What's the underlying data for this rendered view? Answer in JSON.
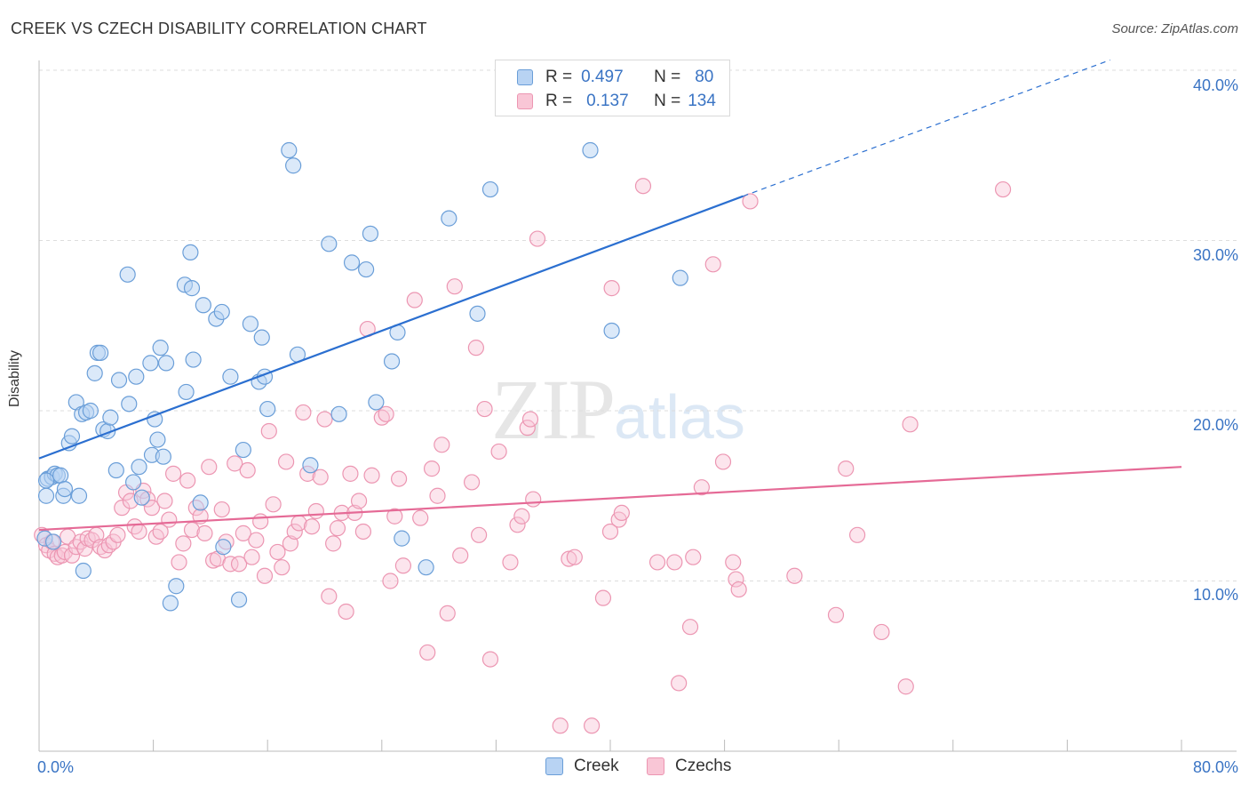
{
  "header": {
    "title": "CREEK VS CZECH DISABILITY CORRELATION CHART",
    "source": "Source: ZipAtlas.com"
  },
  "watermark": {
    "zip": "ZIP",
    "atlas": "atlas"
  },
  "legend_top": [
    {
      "r_label": "R =",
      "r_value": "0.497",
      "n_label": "N =",
      "n_value": "80"
    },
    {
      "r_label": "R =",
      "r_value": "0.137",
      "n_label": "N =",
      "n_value": "134"
    }
  ],
  "colors": {
    "creek_fill": "#b8d3f3",
    "creek_stroke": "#6a9ed8",
    "creek_line": "#2b6fd0",
    "czech_fill": "#f9c6d6",
    "czech_stroke": "#ec96b2",
    "czech_line": "#e56a96",
    "axis_text": "#3a74c4",
    "grid": "#dddddd"
  },
  "chart_data": {
    "type": "scatter",
    "title": "CREEK VS CZECH DISABILITY CORRELATION CHART",
    "xlabel": "",
    "ylabel": "Disability",
    "xlim": [
      0,
      80
    ],
    "ylim": [
      0,
      40
    ],
    "y_ticks": [
      "10.0%",
      "20.0%",
      "30.0%",
      "40.0%"
    ],
    "x_ticks": [
      "0.0%",
      "80.0%"
    ],
    "grid": true,
    "legend_position": "top-center",
    "series": [
      {
        "name": "Creek",
        "r": 0.497,
        "n": 80,
        "trend": {
          "x0": 0,
          "y0": 17.2,
          "x1": 49.3,
          "y1": 32.6,
          "dashed_to_x": 75,
          "dashed_to_y": 40.6
        },
        "points": [
          [
            0.4,
            12.5
          ],
          [
            0.5,
            15.0
          ],
          [
            0.6,
            16.0
          ],
          [
            0.9,
            16.1
          ],
          [
            1.1,
            16.3
          ],
          [
            1.3,
            16.2
          ],
          [
            1.5,
            16.2
          ],
          [
            1.7,
            15.0
          ],
          [
            1.8,
            15.4
          ],
          [
            2.1,
            18.1
          ],
          [
            2.3,
            18.5
          ],
          [
            2.6,
            20.5
          ],
          [
            2.8,
            15.0
          ],
          [
            3.0,
            19.8
          ],
          [
            3.1,
            10.6
          ],
          [
            3.3,
            19.9
          ],
          [
            3.6,
            20.0
          ],
          [
            3.9,
            22.2
          ],
          [
            4.1,
            23.4
          ],
          [
            4.3,
            23.4
          ],
          [
            4.5,
            18.9
          ],
          [
            4.8,
            18.8
          ],
          [
            5.0,
            19.6
          ],
          [
            5.4,
            16.5
          ],
          [
            5.6,
            21.8
          ],
          [
            6.2,
            28.0
          ],
          [
            6.3,
            20.4
          ],
          [
            6.6,
            15.8
          ],
          [
            6.8,
            22.0
          ],
          [
            7.0,
            16.7
          ],
          [
            7.2,
            14.9
          ],
          [
            7.8,
            22.8
          ],
          [
            7.9,
            17.4
          ],
          [
            8.1,
            19.5
          ],
          [
            8.3,
            18.3
          ],
          [
            8.5,
            23.7
          ],
          [
            8.7,
            17.3
          ],
          [
            8.9,
            22.8
          ],
          [
            9.2,
            8.7
          ],
          [
            9.6,
            9.7
          ],
          [
            10.2,
            27.4
          ],
          [
            10.3,
            21.1
          ],
          [
            10.6,
            29.3
          ],
          [
            10.7,
            27.2
          ],
          [
            10.8,
            23.0
          ],
          [
            11.3,
            14.6
          ],
          [
            11.5,
            26.2
          ],
          [
            12.4,
            25.4
          ],
          [
            12.8,
            25.8
          ],
          [
            12.9,
            12.0
          ],
          [
            13.4,
            22.0
          ],
          [
            14.0,
            8.9
          ],
          [
            14.3,
            17.7
          ],
          [
            14.8,
            25.1
          ],
          [
            15.4,
            21.7
          ],
          [
            15.6,
            24.3
          ],
          [
            15.8,
            22.0
          ],
          [
            16.0,
            20.1
          ],
          [
            17.5,
            35.3
          ],
          [
            17.8,
            34.4
          ],
          [
            18.1,
            23.3
          ],
          [
            19.0,
            16.8
          ],
          [
            20.3,
            29.8
          ],
          [
            21.0,
            19.8
          ],
          [
            21.9,
            28.7
          ],
          [
            22.9,
            28.3
          ],
          [
            23.2,
            30.4
          ],
          [
            23.6,
            20.5
          ],
          [
            24.7,
            22.9
          ],
          [
            25.1,
            24.6
          ],
          [
            25.4,
            12.5
          ],
          [
            27.1,
            10.8
          ],
          [
            28.7,
            31.3
          ],
          [
            30.7,
            25.7
          ],
          [
            31.6,
            33.0
          ],
          [
            38.6,
            35.3
          ],
          [
            40.1,
            24.7
          ],
          [
            44.9,
            27.8
          ],
          [
            0.5,
            15.9
          ],
          [
            1.0,
            12.3
          ]
        ]
      },
      {
        "name": "Czechs",
        "r": 0.137,
        "n": 134,
        "trend": {
          "x0": 0,
          "y0": 13.0,
          "x1": 80,
          "y1": 16.7
        },
        "points": [
          [
            0.2,
            12.7
          ],
          [
            0.5,
            12.1
          ],
          [
            0.7,
            11.8
          ],
          [
            0.9,
            12.3
          ],
          [
            1.1,
            11.6
          ],
          [
            1.3,
            11.4
          ],
          [
            1.6,
            11.5
          ],
          [
            1.8,
            11.7
          ],
          [
            2.0,
            12.6
          ],
          [
            2.3,
            11.5
          ],
          [
            2.6,
            12.0
          ],
          [
            2.9,
            12.3
          ],
          [
            3.2,
            11.9
          ],
          [
            3.4,
            12.5
          ],
          [
            3.7,
            12.4
          ],
          [
            4.0,
            12.7
          ],
          [
            4.3,
            12.0
          ],
          [
            4.6,
            11.8
          ],
          [
            4.9,
            12.1
          ],
          [
            5.2,
            12.3
          ],
          [
            5.5,
            12.7
          ],
          [
            5.8,
            14.3
          ],
          [
            6.1,
            15.2
          ],
          [
            6.4,
            14.7
          ],
          [
            6.7,
            13.2
          ],
          [
            7.0,
            12.9
          ],
          [
            7.3,
            15.3
          ],
          [
            7.6,
            14.8
          ],
          [
            7.9,
            14.3
          ],
          [
            8.2,
            12.6
          ],
          [
            8.5,
            12.9
          ],
          [
            8.8,
            14.7
          ],
          [
            9.1,
            13.6
          ],
          [
            9.4,
            16.3
          ],
          [
            9.8,
            11.1
          ],
          [
            10.1,
            12.2
          ],
          [
            10.4,
            15.9
          ],
          [
            10.7,
            13.0
          ],
          [
            11.0,
            14.3
          ],
          [
            11.3,
            13.8
          ],
          [
            11.6,
            12.8
          ],
          [
            11.9,
            16.7
          ],
          [
            12.2,
            11.2
          ],
          [
            12.5,
            11.3
          ],
          [
            12.8,
            14.2
          ],
          [
            13.1,
            12.3
          ],
          [
            13.4,
            11.0
          ],
          [
            13.7,
            16.9
          ],
          [
            14.0,
            11.0
          ],
          [
            14.3,
            12.8
          ],
          [
            14.6,
            16.5
          ],
          [
            14.9,
            11.4
          ],
          [
            15.2,
            12.4
          ],
          [
            15.5,
            13.5
          ],
          [
            15.8,
            10.3
          ],
          [
            16.1,
            18.8
          ],
          [
            16.4,
            14.5
          ],
          [
            16.7,
            11.7
          ],
          [
            17.0,
            10.8
          ],
          [
            17.3,
            17.0
          ],
          [
            17.6,
            12.2
          ],
          [
            17.9,
            12.9
          ],
          [
            18.2,
            13.4
          ],
          [
            18.5,
            19.9
          ],
          [
            18.8,
            16.3
          ],
          [
            19.1,
            13.2
          ],
          [
            19.4,
            14.1
          ],
          [
            19.7,
            16.1
          ],
          [
            20.0,
            19.5
          ],
          [
            20.3,
            9.1
          ],
          [
            20.6,
            12.2
          ],
          [
            20.9,
            13.1
          ],
          [
            21.2,
            14.0
          ],
          [
            21.5,
            8.2
          ],
          [
            21.8,
            16.3
          ],
          [
            22.1,
            14.0
          ],
          [
            22.4,
            14.7
          ],
          [
            22.7,
            12.9
          ],
          [
            23.0,
            24.8
          ],
          [
            23.3,
            16.2
          ],
          [
            24.0,
            19.6
          ],
          [
            24.3,
            19.8
          ],
          [
            24.6,
            10.0
          ],
          [
            24.9,
            13.8
          ],
          [
            25.2,
            16.0
          ],
          [
            25.5,
            10.9
          ],
          [
            26.3,
            26.5
          ],
          [
            26.7,
            13.7
          ],
          [
            27.2,
            5.8
          ],
          [
            27.5,
            16.6
          ],
          [
            27.9,
            15.0
          ],
          [
            28.2,
            18.0
          ],
          [
            28.6,
            8.1
          ],
          [
            29.1,
            27.3
          ],
          [
            29.5,
            11.5
          ],
          [
            30.3,
            15.8
          ],
          [
            30.6,
            23.7
          ],
          [
            30.8,
            12.7
          ],
          [
            31.2,
            20.1
          ],
          [
            31.6,
            5.4
          ],
          [
            32.2,
            17.6
          ],
          [
            33.0,
            11.1
          ],
          [
            33.5,
            13.3
          ],
          [
            33.8,
            13.8
          ],
          [
            34.2,
            19.0
          ],
          [
            34.4,
            19.5
          ],
          [
            34.6,
            14.8
          ],
          [
            34.9,
            30.1
          ],
          [
            36.5,
            1.5
          ],
          [
            37.1,
            11.3
          ],
          [
            37.5,
            11.4
          ],
          [
            38.7,
            1.5
          ],
          [
            39.5,
            9.0
          ],
          [
            40.0,
            12.9
          ],
          [
            40.1,
            27.2
          ],
          [
            40.6,
            13.6
          ],
          [
            40.8,
            14.0
          ],
          [
            42.3,
            33.2
          ],
          [
            43.3,
            11.1
          ],
          [
            44.5,
            11.1
          ],
          [
            44.8,
            4.0
          ],
          [
            45.6,
            7.3
          ],
          [
            45.8,
            11.4
          ],
          [
            46.4,
            15.5
          ],
          [
            47.2,
            28.6
          ],
          [
            47.9,
            17.0
          ],
          [
            48.6,
            11.1
          ],
          [
            48.8,
            10.1
          ],
          [
            49.0,
            9.5
          ],
          [
            49.8,
            32.3
          ],
          [
            52.9,
            10.3
          ],
          [
            55.8,
            8.0
          ],
          [
            56.5,
            16.6
          ],
          [
            57.3,
            12.7
          ],
          [
            59.0,
            7.0
          ],
          [
            60.7,
            3.8
          ],
          [
            61.0,
            19.2
          ],
          [
            67.5,
            33.0
          ]
        ]
      }
    ]
  },
  "legend_bottom": [
    {
      "label": "Creek"
    },
    {
      "label": "Czechs"
    }
  ]
}
